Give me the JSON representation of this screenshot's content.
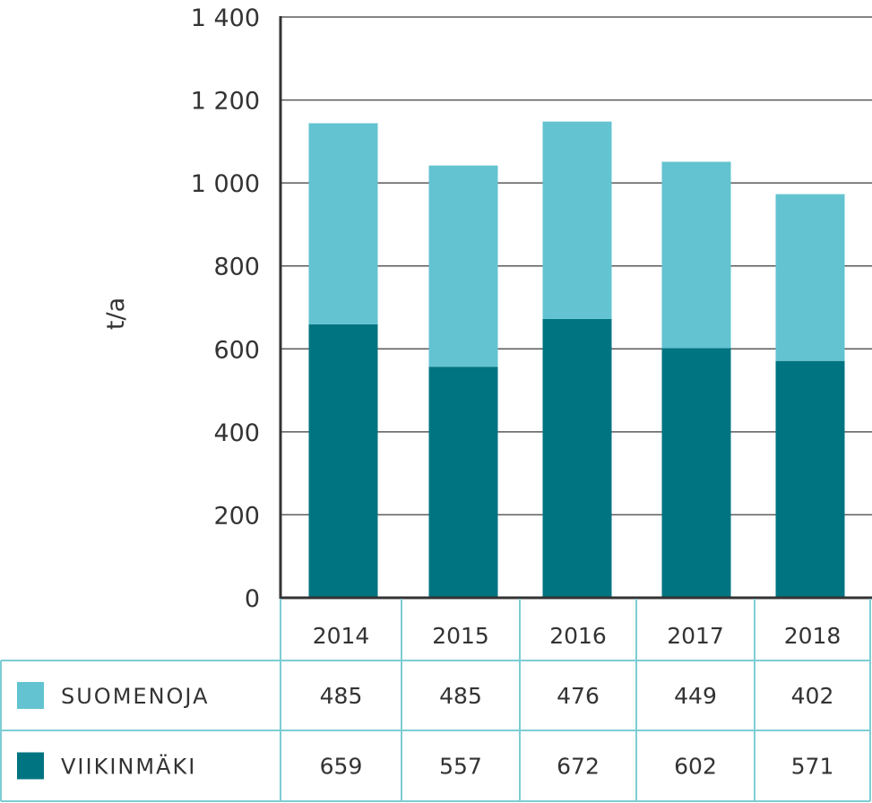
{
  "chart_data": {
    "type": "bar",
    "stacked": true,
    "title": "",
    "xlabel": "",
    "ylabel": "t/a",
    "ylim": [
      0,
      1400
    ],
    "yticks": [
      0,
      200,
      400,
      600,
      800,
      1000,
      1200,
      1400
    ],
    "ytick_labels": [
      "0",
      "200",
      "400",
      "600",
      "800",
      "1 000",
      "1 200",
      "1 400"
    ],
    "grid": true,
    "categories": [
      "2014",
      "2015",
      "2016",
      "2017",
      "2018"
    ],
    "series": [
      {
        "name": "VIIKINMÄKI",
        "values": [
          659,
          557,
          672,
          602,
          571
        ],
        "color": "#007481"
      },
      {
        "name": "SUOMENOJA",
        "values": [
          485,
          485,
          476,
          449,
          402
        ],
        "color": "#63c3d0"
      }
    ],
    "legend": "data table below chart",
    "table_border_color": "#7dcdd3",
    "axis_color": "#333333"
  }
}
